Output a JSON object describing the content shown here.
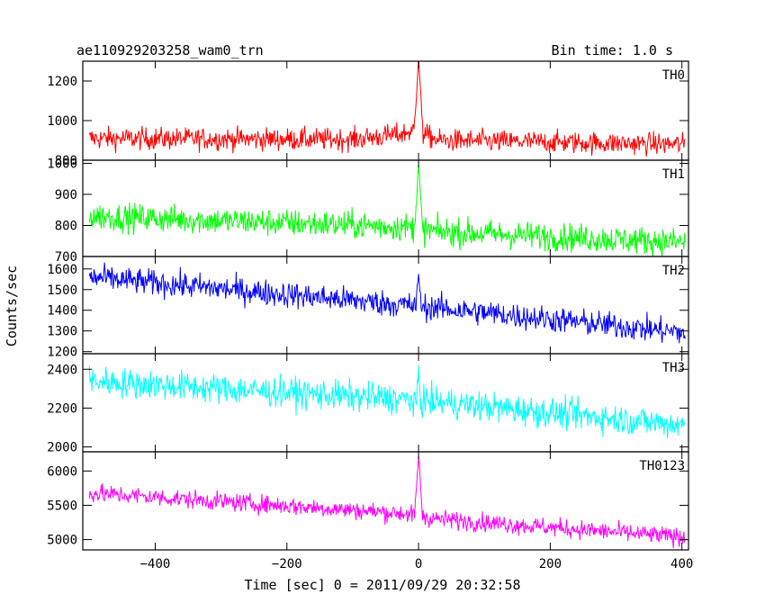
{
  "chart_data": {
    "type": "line",
    "title": "ae110929203258_wam0_trn",
    "subtitle": "Bin time: 1.0 s",
    "xlabel": "Time [sec] 0 = 2011/09/29 20:32:58",
    "ylabel": "Counts/sec",
    "xlim": [
      -510,
      410
    ],
    "xticks": [
      -400,
      -200,
      0,
      200,
      400
    ],
    "grid": false,
    "panels": [
      {
        "name": "TH0",
        "color": "#ff0000",
        "ylim": [
          800,
          1300
        ],
        "yticks": [
          800,
          1000,
          1200
        ],
        "trend": [
          [
            -500,
            910
          ],
          [
            -100,
            905
          ],
          [
            -30,
            930
          ],
          [
            -5,
            950
          ],
          [
            30,
            900
          ],
          [
            410,
            880
          ]
        ],
        "noise": 40,
        "burst": {
          "x": 0,
          "peak": 1300,
          "width": 6
        }
      },
      {
        "name": "TH1",
        "color": "#00ff00",
        "ylim": [
          700,
          1010
        ],
        "yticks": [
          700,
          800,
          900,
          1000
        ],
        "trend": [
          [
            -500,
            830
          ],
          [
            -20,
            795
          ],
          [
            30,
            780
          ],
          [
            410,
            745
          ]
        ],
        "noise": 32,
        "burst": {
          "x": 0,
          "peak": 1000,
          "width": 5
        }
      },
      {
        "name": "TH2",
        "color": "#0000ff",
        "ylim": [
          1190,
          1660
        ],
        "yticks": [
          1200,
          1300,
          1400,
          1500,
          1600
        ],
        "trend": [
          [
            -500,
            1560
          ],
          [
            0,
            1420
          ],
          [
            410,
            1290
          ]
        ],
        "noise": 45,
        "burst": {
          "x": 0,
          "peak": 1580,
          "width": 3
        }
      },
      {
        "name": "TH3",
        "color": "#00ffff",
        "ylim": [
          1975,
          2480
        ],
        "yticks": [
          2000,
          2200,
          2400
        ],
        "trend": [
          [
            -500,
            2340
          ],
          [
            0,
            2240
          ],
          [
            410,
            2110
          ]
        ],
        "noise": 55,
        "burst": {
          "x": 0,
          "peak": 2400,
          "width": 2
        }
      },
      {
        "name": "TH0123",
        "color": "#ff00ff",
        "ylim": [
          4850,
          6280
        ],
        "yticks": [
          5000,
          5500,
          6000
        ],
        "trend": [
          [
            -500,
            5680
          ],
          [
            -20,
            5380
          ],
          [
            30,
            5300
          ],
          [
            410,
            5030
          ]
        ],
        "noise": 95,
        "burst": {
          "x": 0,
          "peak": 6250,
          "width": 5
        }
      }
    ]
  }
}
